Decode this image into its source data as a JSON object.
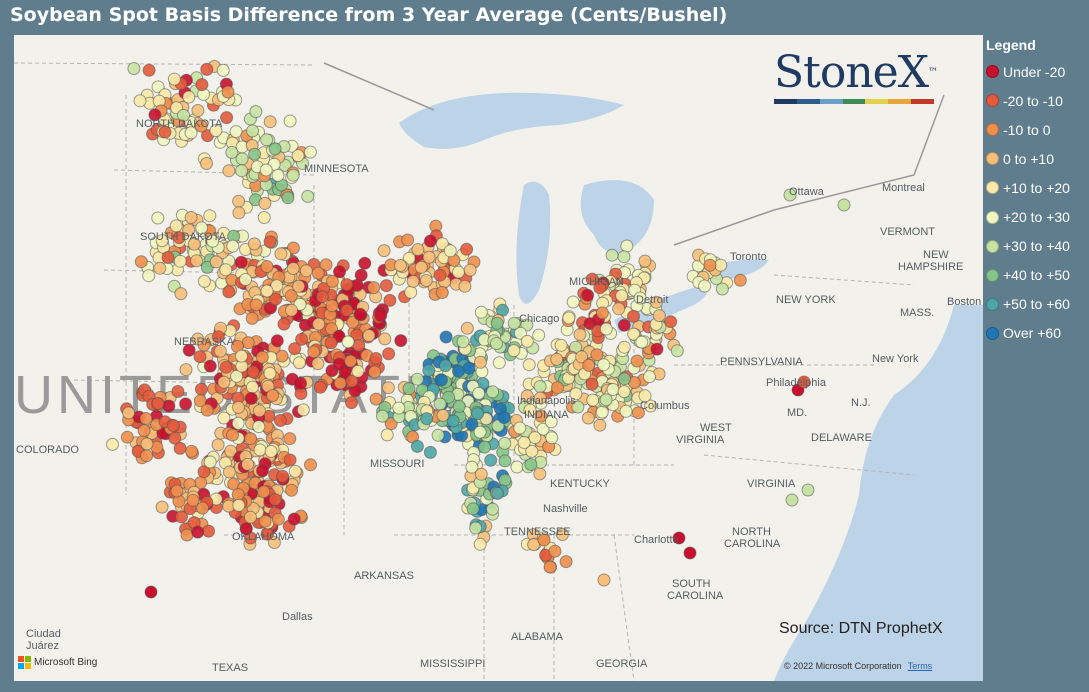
{
  "title": "Soybean Spot Basis Difference from 3 Year Average (Cents/Bushel)",
  "legend": {
    "title": "Legend",
    "items": [
      {
        "label": "Under -20",
        "color": "#c8102e"
      },
      {
        "label": "-20 to -10",
        "color": "#e35a3c"
      },
      {
        "label": "-10 to 0",
        "color": "#ef8f4e"
      },
      {
        "label": "0 to +10",
        "color": "#f6bf7a"
      },
      {
        "label": "+10 to +20",
        "color": "#faeaa9"
      },
      {
        "label": "+20 to +30",
        "color": "#eff6c0"
      },
      {
        "label": "+30 to +40",
        "color": "#c6e3a3"
      },
      {
        "label": "+40 to +50",
        "color": "#86c48a"
      },
      {
        "label": "+50 to +60",
        "color": "#4ea6a8"
      },
      {
        "label": "Over +60",
        "color": "#1f76b4"
      }
    ]
  },
  "logo": {
    "text": "StoneX",
    "tm": "™",
    "stripe_colors": [
      "#1f3b64",
      "#2e5c8c",
      "#6aa0c8",
      "#3e8a57",
      "#e2d24a",
      "#e8a53a",
      "#c0392b"
    ]
  },
  "source": "Source: DTN ProphetX",
  "map_credit": {
    "bing": "Microsoft Bing",
    "copyright": "© 2022 Microsoft Corporation",
    "terms": "Terms"
  },
  "map_labels": {
    "regions": [
      "NORTH DAKOTA",
      "MINNESOTA",
      "SOUTH DAKOTA",
      "NEBRASKA",
      "COLORADO",
      "MISSOURI",
      "KENTUCKY",
      "TENNESSEE",
      "ARKANSAS",
      "OKLAHOMA",
      "TEXAS",
      "MISSISSIPPI",
      "ALABAMA",
      "GEORGIA",
      "SOUTH CAROLINA",
      "NORTH CAROLINA",
      "VIRGINIA",
      "WEST VIRGINIA",
      "PENNSYLVANIA",
      "NEW YORK",
      "VERMONT",
      "NEW HAMPSHIRE",
      "MASS.",
      "DELAWARE",
      "MD.",
      "N.J.",
      "INDIANA",
      "UNITED STATES",
      "MICHIGAN"
    ],
    "cities": [
      "Chicago",
      "Nashville",
      "Charlotte",
      "Columbus",
      "Dallas",
      "Ciudad Juárez",
      "Ottawa",
      "Montreal",
      "Toronto",
      "Boston",
      "New York",
      "Philadelphia",
      "Detroit",
      "Indianapolis"
    ]
  },
  "bubble_clusters": [
    {
      "category": 0,
      "areas": [
        "western Minnesota / eastern South Dakota",
        "north-central Iowa",
        "western Oklahoma",
        "western Kansas",
        "upper Michigan"
      ]
    },
    {
      "category": 9,
      "areas": [
        "central Illinois",
        "north-east Missouri",
        "north-west Tennessee"
      ]
    }
  ]
}
